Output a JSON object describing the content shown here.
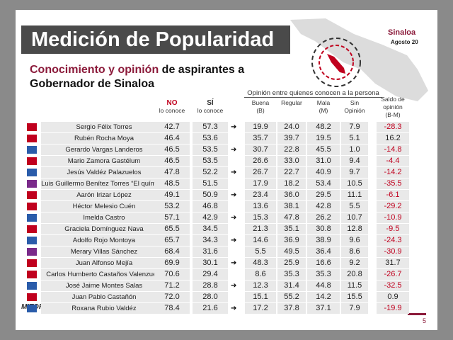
{
  "header": {
    "title": "Medición de Popularidad",
    "region": "Sinaloa",
    "date": "Agosto 20"
  },
  "subtitle": {
    "highlight": "Conocimiento y opinión",
    "rest": "de aspirantes a",
    "line2": "Gobernador de Sinaloa"
  },
  "table": {
    "group_header": "Opinión entre quienes conocen a la persona",
    "columns": [
      {
        "top": "NO",
        "bottom": "lo conoce"
      },
      {
        "top": "SÍ",
        "bottom": "lo conoce"
      },
      {
        "top": "Buena",
        "bottom": "(B)"
      },
      {
        "top": "Regular",
        "bottom": ""
      },
      {
        "top": "Mala",
        "bottom": "(M)"
      },
      {
        "top": "Sin",
        "bottom": "Opinión"
      },
      {
        "top": "Saldo de opinión",
        "bottom": "(B-M)"
      }
    ],
    "rows": [
      [
        "Sergio Félix Torres",
        "42.7",
        "57.3",
        "19.9",
        "24.0",
        "48.2",
        "7.9",
        "-28.3"
      ],
      [
        "Rubén Rocha Moya",
        "46.4",
        "53.6",
        "35.7",
        "39.7",
        "19.5",
        "5.1",
        "16.2"
      ],
      [
        "Gerardo Vargas Landeros",
        "46.5",
        "53.5",
        "30.7",
        "22.8",
        "45.5",
        "1.0",
        "-14.8"
      ],
      [
        "Mario Zamora Gastélum",
        "46.5",
        "53.5",
        "26.6",
        "33.0",
        "31.0",
        "9.4",
        "-4.4"
      ],
      [
        "Jesús Valdéz Palazuelos",
        "47.8",
        "52.2",
        "26.7",
        "22.7",
        "40.9",
        "9.7",
        "-14.2"
      ],
      [
        "Luis Guillermo Benítez Torres “El químico”",
        "48.5",
        "51.5",
        "17.9",
        "18.2",
        "53.4",
        "10.5",
        "-35.5"
      ],
      [
        "Aarón Irizar López",
        "49.1",
        "50.9",
        "23.4",
        "36.0",
        "29.5",
        "11.1",
        "-6.1"
      ],
      [
        "Héctor Melesio Cuén",
        "53.2",
        "46.8",
        "13.6",
        "38.1",
        "42.8",
        "5.5",
        "-29.2"
      ],
      [
        "Imelda Castro",
        "57.1",
        "42.9",
        "15.3",
        "47.8",
        "26.2",
        "10.7",
        "-10.9"
      ],
      [
        "Graciela Domínguez Nava",
        "65.5",
        "34.5",
        "21.3",
        "35.1",
        "30.8",
        "12.8",
        "-9.5"
      ],
      [
        "Adolfo Rojo Montoya",
        "65.7",
        "34.3",
        "14.6",
        "36.9",
        "38.9",
        "9.6",
        "-24.3"
      ],
      [
        "Merary Villas Sánchez",
        "68.4",
        "31.6",
        "5.5",
        "49.5",
        "36.4",
        "8.6",
        "-30.9"
      ],
      [
        "Juan Alfonso Mejía",
        "69.9",
        "30.1",
        "48.3",
        "25.9",
        "16.6",
        "9.2",
        "31.7"
      ],
      [
        "Carlos Humberto Castaños Valenzuela",
        "70.6",
        "29.4",
        "8.6",
        "35.3",
        "35.3",
        "20.8",
        "-26.7"
      ],
      [
        "José Jaime Montes Salas",
        "71.2",
        "28.8",
        "12.3",
        "31.4",
        "44.8",
        "11.5",
        "-32.5"
      ],
      [
        "Juan Pablo Castañón",
        "72.0",
        "28.0",
        "15.1",
        "55.2",
        "14.2",
        "15.5",
        "0.9"
      ],
      [
        "Roxana Rubio Valdéz",
        "78.4",
        "21.6",
        "17.2",
        "37.8",
        "37.1",
        "7.9",
        "-19.9"
      ]
    ]
  },
  "footer": {
    "logo": "MITOFSKY",
    "page": "5"
  }
}
